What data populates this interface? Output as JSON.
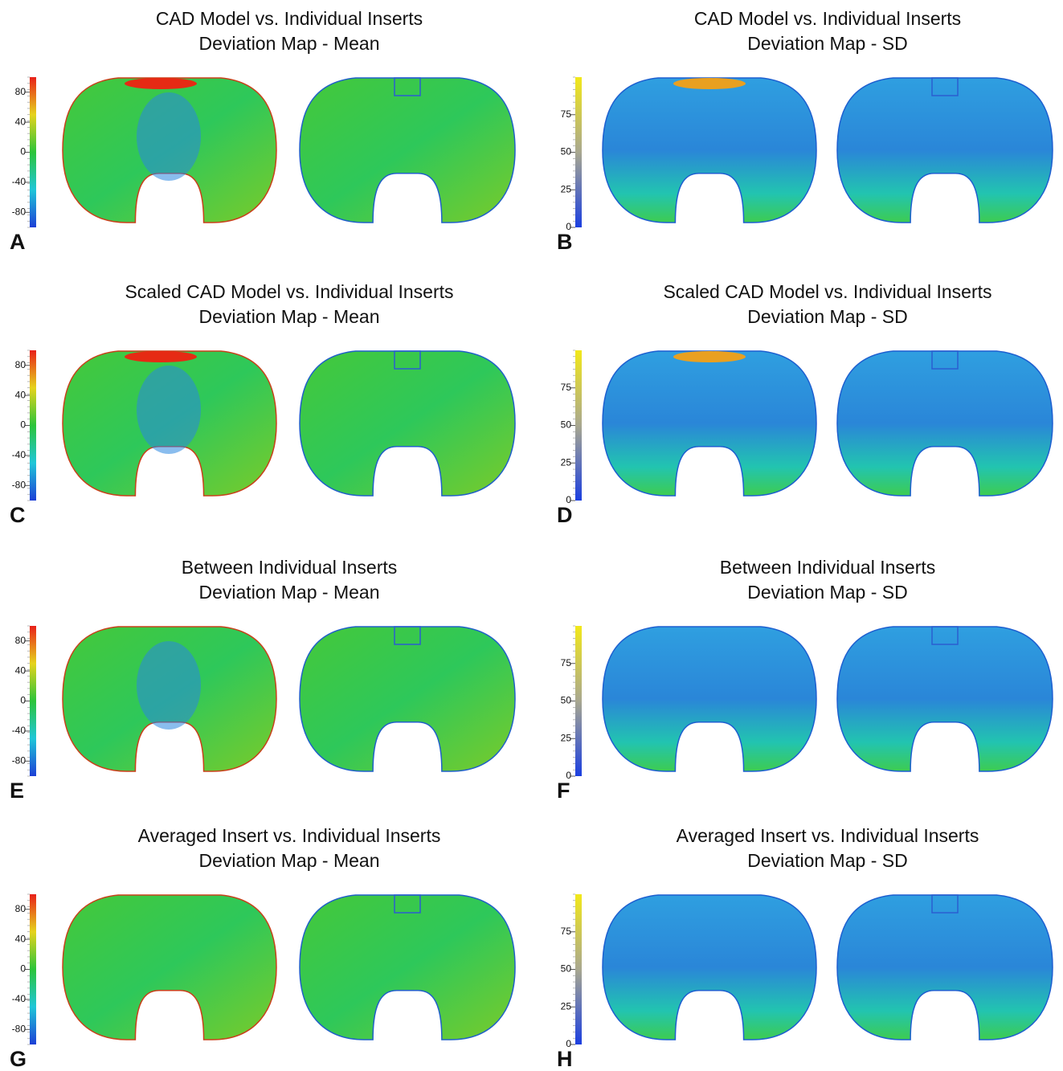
{
  "panels": [
    {
      "label": "A",
      "title": [
        "CAD Model vs. Individual Inserts",
        "Deviation Map - Mean"
      ],
      "colorbar": {
        "ylim": [
          -100,
          100
        ],
        "ticks": [
          80,
          40,
          0,
          -40,
          -80
        ]
      }
    },
    {
      "label": "B",
      "title": [
        "CAD Model vs. Individual Inserts",
        "Deviation Map - SD"
      ],
      "colorbar": {
        "ylim": [
          0,
          100
        ],
        "ticks": [
          75,
          50,
          25,
          0
        ]
      }
    },
    {
      "label": "C",
      "title": [
        "Scaled CAD Model vs. Individual Inserts",
        "Deviation Map - Mean"
      ],
      "colorbar": {
        "ylim": [
          -100,
          100
        ],
        "ticks": [
          80,
          40,
          0,
          -40,
          -80
        ]
      }
    },
    {
      "label": "D",
      "title": [
        "Scaled CAD Model vs. Individual Inserts",
        "Deviation Map - SD"
      ],
      "colorbar": {
        "ylim": [
          0,
          100
        ],
        "ticks": [
          75,
          50,
          25,
          0
        ]
      }
    },
    {
      "label": "E",
      "title": [
        "Between Individual Inserts",
        "Deviation Map - Mean"
      ],
      "colorbar": {
        "ylim": [
          -100,
          100
        ],
        "ticks": [
          80,
          40,
          0,
          -40,
          -80
        ]
      }
    },
    {
      "label": "F",
      "title": [
        "Between Individual Inserts",
        "Deviation Map - SD"
      ],
      "colorbar": {
        "ylim": [
          0,
          100
        ],
        "ticks": [
          75,
          50,
          25,
          0
        ]
      }
    },
    {
      "label": "G",
      "title": [
        "Averaged Insert vs. Individual Inserts",
        "Deviation Map - Mean"
      ],
      "colorbar": {
        "ylim": [
          -100,
          100
        ],
        "ticks": [
          80,
          40,
          0,
          -40,
          -80
        ]
      }
    },
    {
      "label": "H",
      "title": [
        "Averaged Insert vs. Individual Inserts",
        "Deviation Map - SD"
      ],
      "colorbar": {
        "ylim": [
          0,
          100
        ],
        "ticks": [
          75,
          50,
          25,
          0
        ]
      }
    }
  ]
}
